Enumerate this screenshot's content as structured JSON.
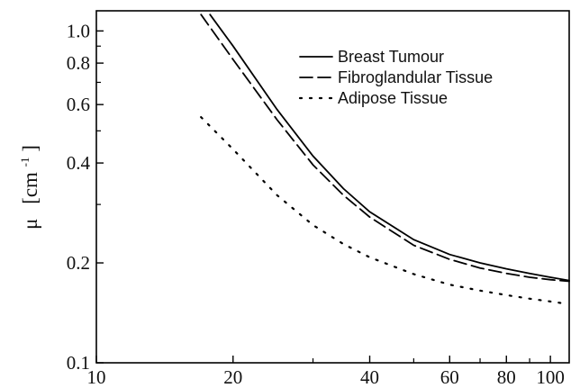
{
  "chart_data": {
    "type": "line",
    "title": "",
    "xlabel": "",
    "ylabel": "μ [cm⁻¹]",
    "ylabel_parts": {
      "symbol": "μ",
      "unit_open": "[cm",
      "unit_sup": "-1",
      "unit_close": "]"
    },
    "x_scale": "log",
    "y_scale": "log",
    "xlim": [
      10,
      110
    ],
    "ylim": [
      0.1,
      1.15
    ],
    "x_ticks": [
      10,
      20,
      40,
      60,
      80,
      100
    ],
    "x_tick_labels": [
      "10",
      "20",
      "40",
      "60",
      "80",
      "100"
    ],
    "y_ticks": [
      0.1,
      0.2,
      0.4,
      0.6,
      0.8,
      1.0
    ],
    "y_tick_labels": [
      "0.1",
      "0.2",
      "0.4",
      "0.6",
      "0.8",
      "1.0"
    ],
    "grid": false,
    "legend_position": "top-right",
    "series": [
      {
        "name": "Breast Tumour",
        "style": "solid",
        "color": "#000000",
        "x": [
          17.8,
          20,
          25,
          30,
          35,
          40,
          50,
          60,
          70,
          80,
          90,
          100,
          110
        ],
        "y": [
          1.12,
          0.9,
          0.58,
          0.42,
          0.335,
          0.285,
          0.235,
          0.212,
          0.2,
          0.192,
          0.186,
          0.181,
          0.177
        ]
      },
      {
        "name": "Fibroglandular Tissue",
        "style": "dashed",
        "color": "#000000",
        "x": [
          17,
          20,
          25,
          30,
          35,
          40,
          50,
          60,
          70,
          80,
          90,
          100,
          110
        ],
        "y": [
          1.12,
          0.82,
          0.54,
          0.395,
          0.32,
          0.275,
          0.226,
          0.205,
          0.193,
          0.186,
          0.181,
          0.178,
          0.176
        ]
      },
      {
        "name": "Adipose Tissue",
        "style": "dotted",
        "color": "#000000",
        "x": [
          17,
          20,
          25,
          30,
          35,
          40,
          50,
          60,
          70,
          80,
          90,
          100,
          107
        ],
        "y": [
          0.55,
          0.44,
          0.32,
          0.26,
          0.228,
          0.208,
          0.185,
          0.172,
          0.165,
          0.16,
          0.156,
          0.153,
          0.151
        ]
      }
    ]
  }
}
